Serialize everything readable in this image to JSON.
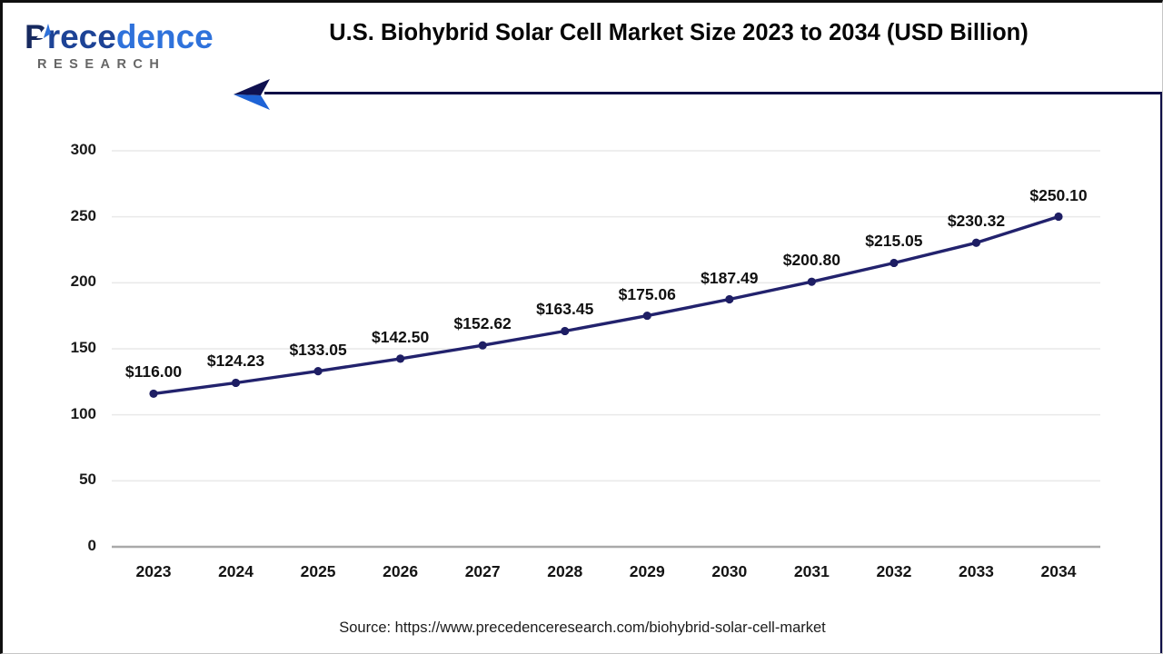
{
  "logo": {
    "p": "P",
    "name_mid": "rece",
    "name_end": "dence",
    "subtitle": "RESEARCH"
  },
  "header": {
    "title": "U.S. Biohybrid Solar Cell Market Size 2023 to 2034 (USD Billion)"
  },
  "footer": {
    "source": "Source: https://www.precedenceresearch.com/biohybrid-solar-cell-market"
  },
  "colors": {
    "line": "#22226d",
    "marker": "#1e1e64",
    "grid": "#e9e9e9",
    "zero_axis": "#a9a9a9",
    "header_rule_navy": "#0e0e46",
    "arrow_dark": "#0f1150",
    "arrow_blue": "#1e63d6",
    "logo_dark_blue": "#16295f",
    "logo_bright_blue": "#2f72db",
    "research_gray": "#666666"
  },
  "chart_data": {
    "type": "line",
    "title": "U.S. Biohybrid Solar Cell Market Size 2023 to 2034 (USD Billion)",
    "categories": [
      "2023",
      "2024",
      "2025",
      "2026",
      "2027",
      "2028",
      "2029",
      "2030",
      "2031",
      "2032",
      "2033",
      "2034"
    ],
    "values": [
      116.0,
      124.23,
      133.05,
      142.5,
      152.62,
      163.45,
      175.06,
      187.49,
      200.8,
      215.05,
      230.32,
      250.1
    ],
    "value_labels": [
      "$116.00",
      "$124.23",
      "$133.05",
      "$142.50",
      "$152.62",
      "$163.45",
      "$175.06",
      "$187.49",
      "$200.80",
      "$215.05",
      "$230.32",
      "$250.10"
    ],
    "xlabel": "",
    "ylabel": "",
    "ylim": [
      0,
      300
    ],
    "yticks": [
      0,
      50,
      100,
      150,
      200,
      250,
      300
    ],
    "grid": true,
    "legend": "none",
    "marker": "circle"
  }
}
